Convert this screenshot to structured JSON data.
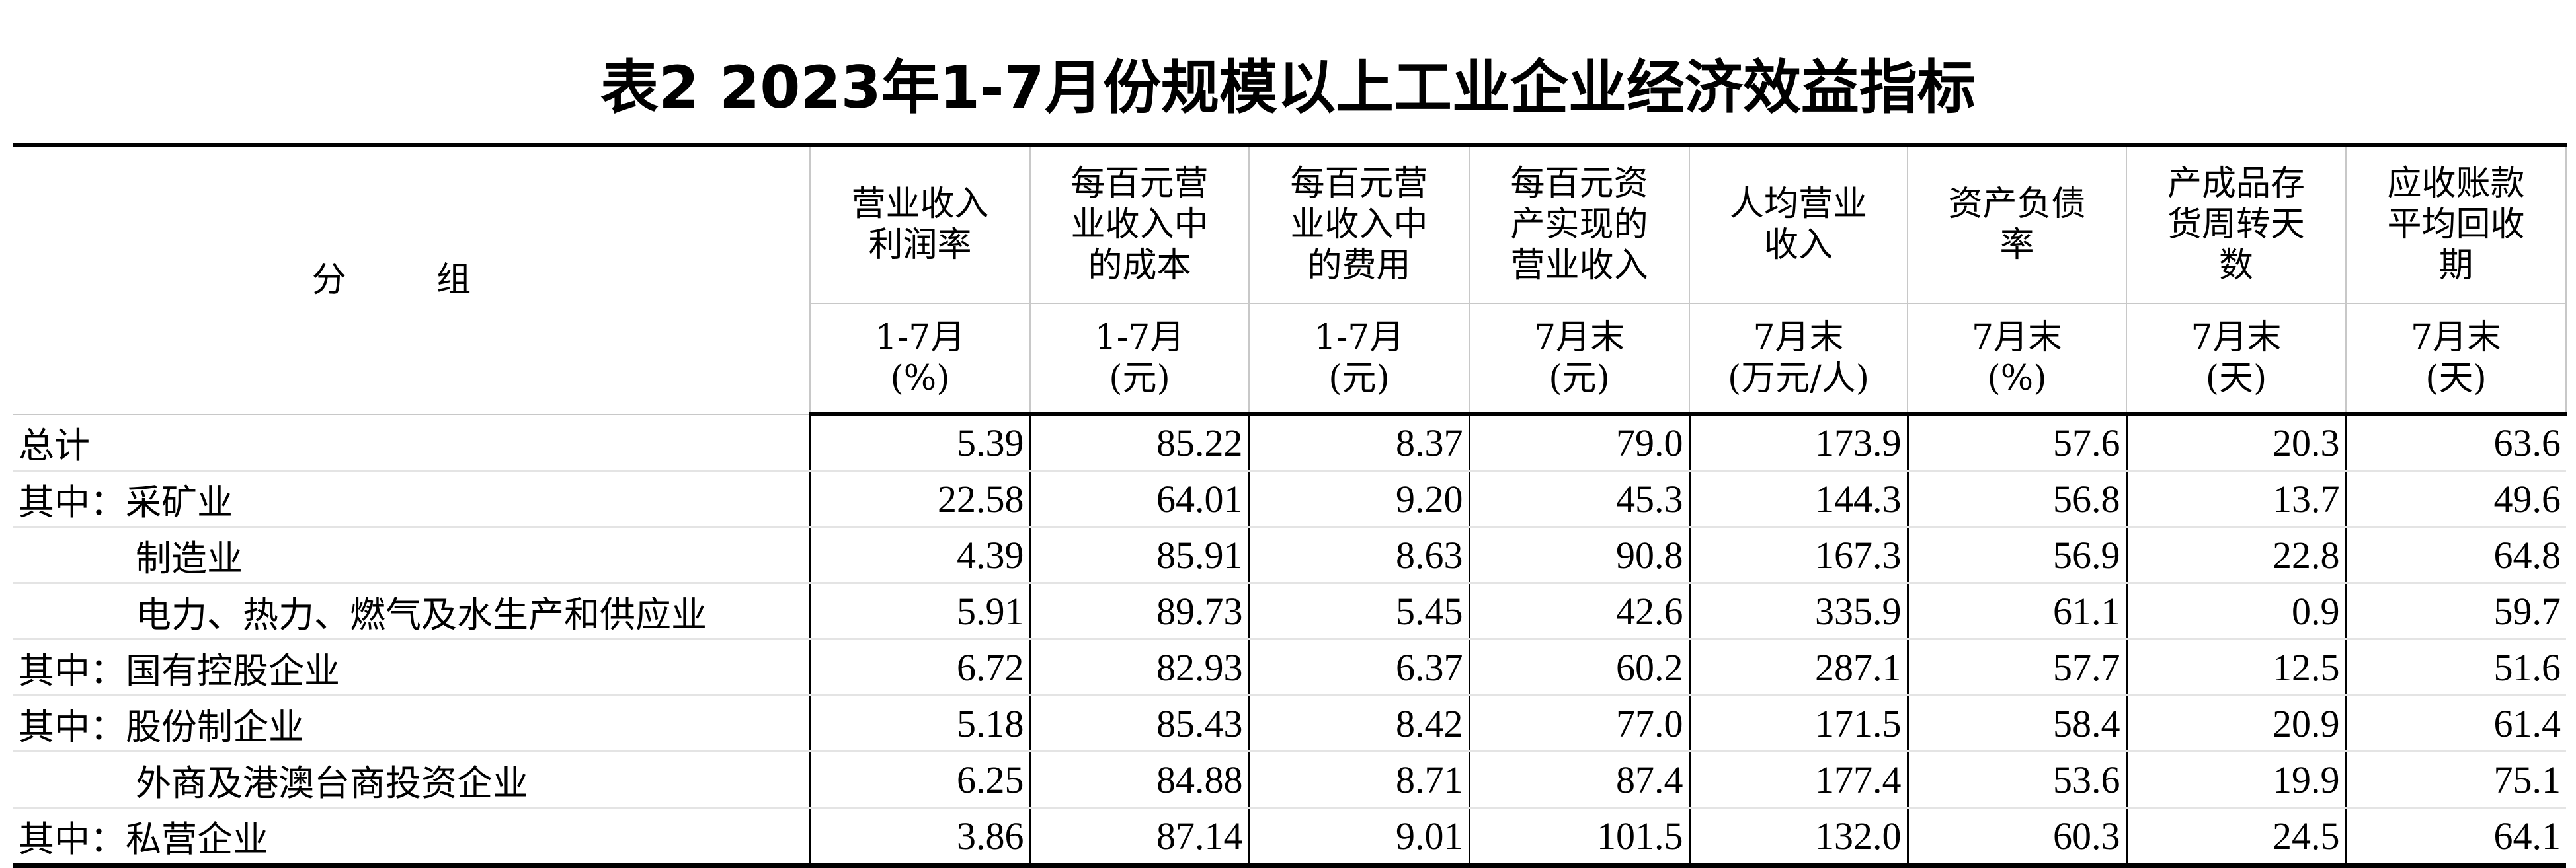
{
  "title": "表2 2023年1-7月份规模以上工业企业经济效益指标",
  "group_header": "分 组",
  "columns": [
    {
      "label": "营业收入利润率",
      "period": "1-7月",
      "unit": "(%)"
    },
    {
      "label": "每百元营业收入中的成本",
      "period": "1-7月",
      "unit": "(元)"
    },
    {
      "label": "每百元营业收入中的费用",
      "period": "1-7月",
      "unit": "(元)"
    },
    {
      "label": "每百元资产实现的营业收入",
      "period": "7月末",
      "unit": "(元)"
    },
    {
      "label": "人均营业收入",
      "period": "7月末",
      "unit": "(万元/人)"
    },
    {
      "label": "资产负债率",
      "period": "7月末",
      "unit": "(%)"
    },
    {
      "label": "产成品存货周转天数",
      "period": "7月末",
      "unit": "(天)"
    },
    {
      "label": "应收账款平均回收期",
      "period": "7月末",
      "unit": "(天)"
    }
  ],
  "rows": [
    {
      "name": "总计",
      "indent": false,
      "values": [
        "5.39",
        "85.22",
        "8.37",
        "79.0",
        "173.9",
        "57.6",
        "20.3",
        "63.6"
      ]
    },
    {
      "name": "其中：采矿业",
      "indent": false,
      "values": [
        "22.58",
        "64.01",
        "9.20",
        "45.3",
        "144.3",
        "56.8",
        "13.7",
        "49.6"
      ]
    },
    {
      "name": "制造业",
      "indent": true,
      "values": [
        "4.39",
        "85.91",
        "8.63",
        "90.8",
        "167.3",
        "56.9",
        "22.8",
        "64.8"
      ]
    },
    {
      "name": "电力、热力、燃气及水生产和供应业",
      "indent": true,
      "values": [
        "5.91",
        "89.73",
        "5.45",
        "42.6",
        "335.9",
        "61.1",
        "0.9",
        "59.7"
      ]
    },
    {
      "name": "其中：国有控股企业",
      "indent": false,
      "values": [
        "6.72",
        "82.93",
        "6.37",
        "60.2",
        "287.1",
        "57.7",
        "12.5",
        "51.6"
      ]
    },
    {
      "name": "其中：股份制企业",
      "indent": false,
      "values": [
        "5.18",
        "85.43",
        "8.42",
        "77.0",
        "171.5",
        "58.4",
        "20.9",
        "61.4"
      ]
    },
    {
      "name": "外商及港澳台商投资企业",
      "indent": true,
      "values": [
        "6.25",
        "84.88",
        "8.71",
        "87.4",
        "177.4",
        "53.6",
        "19.9",
        "75.1"
      ]
    },
    {
      "name": "其中：私营企业",
      "indent": false,
      "values": [
        "3.86",
        "87.14",
        "9.01",
        "101.5",
        "132.0",
        "60.3",
        "24.5",
        "64.1"
      ]
    }
  ]
}
